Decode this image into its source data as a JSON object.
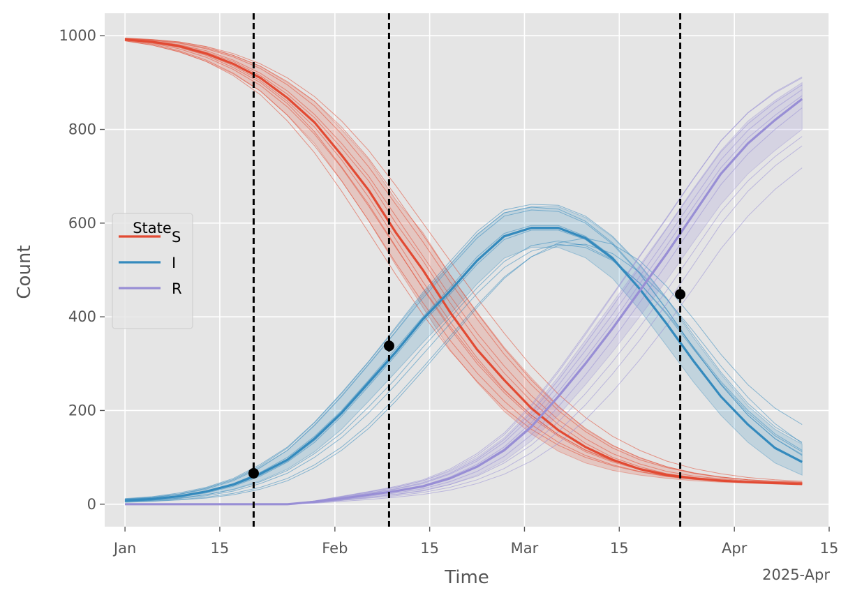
{
  "chart_data": {
    "type": "line",
    "xlabel": "Time",
    "ylabel": "Count",
    "x_offset_label": "2025-Apr",
    "x_ticks": [
      {
        "date": "2025-01-01",
        "label": "Jan"
      },
      {
        "date": "2025-01-15",
        "label": "15"
      },
      {
        "date": "2025-02-01",
        "label": "Feb"
      },
      {
        "date": "2025-02-15",
        "label": "15"
      },
      {
        "date": "2025-03-01",
        "label": "Mar"
      },
      {
        "date": "2025-03-15",
        "label": "15"
      },
      {
        "date": "2025-04-01",
        "label": "Apr"
      },
      {
        "date": "2025-04-15",
        "label": "15"
      }
    ],
    "y_ticks": [
      0,
      200,
      400,
      600,
      800,
      1000
    ],
    "xlim": [
      "2024-12-29",
      "2025-04-15"
    ],
    "ylim": [
      -48,
      1048
    ],
    "grid": true,
    "legend": {
      "title": "State",
      "placement": "center-left"
    },
    "x": [
      "2025-01-01",
      "2025-01-05",
      "2025-01-09",
      "2025-01-13",
      "2025-01-17",
      "2025-01-21",
      "2025-01-25",
      "2025-01-29",
      "2025-02-02",
      "2025-02-06",
      "2025-02-10",
      "2025-02-14",
      "2025-02-18",
      "2025-02-22",
      "2025-02-26",
      "2025-03-02",
      "2025-03-06",
      "2025-03-10",
      "2025-03-14",
      "2025-03-18",
      "2025-03-22",
      "2025-03-26",
      "2025-03-30",
      "2025-04-03",
      "2025-04-07",
      "2025-04-11"
    ],
    "series": [
      {
        "name": "S",
        "color": "#E24A33",
        "mean": [
          992,
          987,
          978,
          962,
          940,
          910,
          867,
          815,
          745,
          670,
          580,
          500,
          410,
          330,
          265,
          205,
          158,
          122,
          95,
          75,
          62,
          55,
          50,
          47,
          45,
          43
        ],
        "lower": [
          989,
          980,
          965,
          945,
          918,
          882,
          830,
          770,
          690,
          605,
          510,
          420,
          330,
          260,
          198,
          150,
          113,
          88,
          72,
          62,
          55,
          50,
          47,
          45,
          43,
          42
        ],
        "upper": [
          995,
          992,
          987,
          977,
          958,
          935,
          900,
          860,
          800,
          735,
          650,
          580,
          490,
          410,
          335,
          270,
          210,
          160,
          125,
          100,
          80,
          66,
          57,
          52,
          49,
          47
        ],
        "runs": [
          [
            993,
            988,
            980,
            965,
            945,
            915,
            875,
            825,
            760,
            690,
            600,
            520,
            430,
            350,
            280,
            220,
            170,
            130,
            100,
            80,
            65,
            57,
            52,
            48,
            46,
            44
          ],
          [
            991,
            985,
            975,
            958,
            932,
            900,
            855,
            795,
            720,
            640,
            550,
            460,
            375,
            300,
            238,
            185,
            145,
            112,
            90,
            74,
            62,
            55,
            50,
            47,
            45,
            44
          ],
          [
            994,
            990,
            984,
            972,
            955,
            930,
            895,
            850,
            790,
            720,
            640,
            560,
            475,
            395,
            320,
            255,
            200,
            155,
            120,
            95,
            78,
            66,
            58,
            52,
            49,
            47
          ],
          [
            990,
            982,
            968,
            948,
            920,
            882,
            830,
            765,
            690,
            605,
            515,
            430,
            350,
            280,
            220,
            170,
            132,
            104,
            84,
            70,
            60,
            54,
            50,
            47,
            45,
            43
          ],
          [
            993,
            989,
            981,
            968,
            948,
            920,
            882,
            832,
            770,
            700,
            615,
            530,
            445,
            365,
            295,
            232,
            180,
            140,
            108,
            86,
            70,
            60,
            54,
            50,
            47,
            45
          ],
          [
            992,
            986,
            976,
            960,
            936,
            904,
            860,
            805,
            735,
            655,
            565,
            475,
            390,
            312,
            245,
            190,
            148,
            115,
            92,
            76,
            64,
            56,
            51,
            48,
            46,
            44
          ],
          [
            995,
            992,
            987,
            977,
            962,
            940,
            910,
            870,
            818,
            755,
            680,
            600,
            520,
            440,
            365,
            295,
            235,
            185,
            145,
            115,
            92,
            76,
            65,
            57,
            52,
            49
          ],
          [
            989,
            980,
            966,
            945,
            915,
            874,
            818,
            750,
            668,
            580,
            490,
            405,
            328,
            262,
            205,
            160,
            126,
            100,
            82,
            69,
            59,
            53,
            49,
            46,
            44,
            43
          ],
          [
            994,
            991,
            985,
            974,
            958,
            935,
            902,
            860,
            805,
            738,
            658,
            575,
            490,
            408,
            332,
            265,
            208,
            162,
            126,
            99,
            80,
            67,
            58,
            52,
            48,
            46
          ],
          [
            991,
            984,
            972,
            954,
            928,
            894,
            848,
            790,
            718,
            636,
            548,
            462,
            380,
            306,
            243,
            190,
            148,
            116,
            93,
            77,
            65,
            57,
            52,
            48,
            46,
            44
          ]
        ]
      },
      {
        "name": "I",
        "color": "#348ABD",
        "mean": [
          8,
          11,
          17,
          27,
          42,
          65,
          95,
          140,
          195,
          260,
          325,
          395,
          455,
          520,
          572,
          590,
          590,
          568,
          525,
          460,
          385,
          305,
          230,
          170,
          120,
          90
        ],
        "lower": [
          5,
          8,
          13,
          20,
          32,
          50,
          75,
          112,
          160,
          220,
          282,
          345,
          405,
          470,
          525,
          548,
          548,
          526,
          482,
          415,
          338,
          260,
          190,
          132,
          88,
          62
        ],
        "upper": [
          11,
          14,
          21,
          34,
          52,
          80,
          115,
          170,
          232,
          300,
          370,
          445,
          510,
          575,
          622,
          635,
          635,
          612,
          570,
          510,
          438,
          355,
          278,
          210,
          160,
          128
        ],
        "runs": [
          [
            9,
            12,
            18,
            28,
            44,
            68,
            100,
            145,
            200,
            265,
            332,
            400,
            462,
            528,
            578,
            595,
            595,
            572,
            528,
            462,
            385,
            305,
            230,
            168,
            120,
            92
          ],
          [
            7,
            10,
            15,
            24,
            38,
            60,
            90,
            132,
            188,
            252,
            318,
            388,
            448,
            512,
            565,
            585,
            585,
            565,
            522,
            458,
            382,
            302,
            228,
            168,
            120,
            90
          ],
          [
            12,
            16,
            24,
            36,
            55,
            85,
            122,
            175,
            238,
            305,
            378,
            452,
            518,
            582,
            628,
            640,
            638,
            615,
            572,
            512,
            440,
            360,
            282,
            215,
            165,
            132
          ],
          [
            6,
            8,
            12,
            18,
            28,
            44,
            66,
            100,
            142,
            195,
            255,
            320,
            385,
            450,
            505,
            540,
            555,
            548,
            520,
            472,
            408,
            335,
            262,
            200,
            150,
            115
          ],
          [
            8,
            11,
            16,
            26,
            40,
            62,
            92,
            136,
            192,
            256,
            322,
            392,
            452,
            518,
            570,
            588,
            588,
            566,
            524,
            460,
            384,
            304,
            230,
            170,
            122,
            92
          ],
          [
            5,
            7,
            10,
            15,
            23,
            36,
            55,
            84,
            122,
            170,
            228,
            292,
            358,
            425,
            485,
            528,
            552,
            555,
            535,
            495,
            438,
            368,
            295,
            228,
            172,
            130
          ],
          [
            10,
            14,
            21,
            32,
            50,
            78,
            115,
            168,
            230,
            298,
            368,
            440,
            505,
            568,
            615,
            628,
            625,
            600,
            555,
            492,
            415,
            332,
            255,
            190,
            140,
            106
          ],
          [
            6,
            9,
            13,
            20,
            31,
            48,
            72,
            108,
            152,
            208,
            268,
            335,
            398,
            462,
            518,
            552,
            562,
            552,
            522,
            472,
            405,
            330,
            258,
            195,
            146,
            112
          ],
          [
            4,
            6,
            9,
            13,
            20,
            32,
            50,
            78,
            115,
            162,
            220,
            285,
            352,
            420,
            482,
            528,
            558,
            568,
            555,
            520,
            465,
            395,
            320,
            255,
            205,
            170
          ],
          [
            11,
            15,
            22,
            34,
            53,
            82,
            120,
            174,
            236,
            304,
            375,
            448,
            512,
            576,
            622,
            634,
            630,
            604,
            558,
            494,
            416,
            333,
            256,
            190,
            140,
            104
          ]
        ]
      },
      {
        "name": "R",
        "color": "#988ED5",
        "mean": [
          0,
          0,
          0,
          0,
          0,
          0,
          0,
          5,
          12,
          20,
          28,
          38,
          55,
          80,
          115,
          165,
          230,
          300,
          375,
          455,
          535,
          620,
          705,
          770,
          820,
          865
        ],
        "lower": [
          0,
          0,
          0,
          0,
          0,
          0,
          0,
          3,
          8,
          14,
          20,
          28,
          42,
          62,
          92,
          135,
          190,
          255,
          325,
          400,
          478,
          560,
          640,
          705,
          755,
          800
        ],
        "upper": [
          0,
          0,
          0,
          0,
          0,
          0,
          0,
          7,
          16,
          26,
          36,
          50,
          70,
          100,
          142,
          200,
          272,
          350,
          430,
          510,
          590,
          675,
          755,
          818,
          862,
          900
        ],
        "runs": [
          [
            0,
            0,
            0,
            0,
            0,
            0,
            0,
            5,
            12,
            20,
            28,
            38,
            56,
            82,
            118,
            168,
            232,
            302,
            378,
            458,
            538,
            622,
            706,
            772,
            822,
            866
          ],
          [
            0,
            0,
            0,
            0,
            0,
            0,
            0,
            4,
            10,
            17,
            24,
            33,
            48,
            70,
            102,
            148,
            208,
            276,
            350,
            430,
            512,
            598,
            682,
            748,
            800,
            846
          ],
          [
            0,
            0,
            0,
            0,
            0,
            0,
            0,
            7,
            16,
            26,
            36,
            50,
            72,
            104,
            148,
            208,
            282,
            362,
            445,
            528,
            610,
            695,
            775,
            835,
            878,
            910
          ],
          [
            0,
            0,
            0,
            0,
            0,
            0,
            0,
            3,
            8,
            13,
            18,
            25,
            36,
            52,
            76,
            110,
            155,
            212,
            278,
            350,
            428,
            512,
            598,
            668,
            722,
            765
          ],
          [
            0,
            0,
            0,
            0,
            0,
            0,
            0,
            5,
            13,
            21,
            29,
            40,
            58,
            85,
            122,
            174,
            240,
            312,
            388,
            470,
            552,
            636,
            718,
            782,
            830,
            872
          ],
          [
            0,
            0,
            0,
            0,
            0,
            0,
            0,
            4,
            9,
            15,
            21,
            29,
            42,
            60,
            88,
            126,
            176,
            236,
            304,
            378,
            456,
            540,
            624,
            690,
            742,
            785
          ],
          [
            0,
            0,
            0,
            0,
            0,
            0,
            0,
            6,
            15,
            24,
            33,
            46,
            66,
            96,
            138,
            195,
            265,
            342,
            422,
            505,
            588,
            672,
            752,
            812,
            858,
            895
          ],
          [
            0,
            0,
            0,
            0,
            0,
            0,
            0,
            6,
            14,
            23,
            32,
            44,
            64,
            92,
            132,
            186,
            254,
            328,
            405,
            486,
            568,
            652,
            735,
            798,
            845,
            885
          ],
          [
            0,
            0,
            0,
            0,
            0,
            0,
            0,
            2,
            6,
            10,
            15,
            21,
            30,
            44,
            64,
            92,
            130,
            180,
            240,
            308,
            382,
            462,
            545,
            615,
            672,
            718
          ],
          [
            0,
            0,
            0,
            0,
            0,
            0,
            0,
            7,
            17,
            27,
            38,
            52,
            75,
            108,
            152,
            212,
            286,
            366,
            448,
            530,
            612,
            696,
            776,
            836,
            880,
            912
          ]
        ]
      }
    ],
    "vlines": [
      "2025-01-20",
      "2025-02-09",
      "2025-03-24"
    ],
    "markers": [
      {
        "date": "2025-01-20",
        "value": 66
      },
      {
        "date": "2025-02-09",
        "value": 338
      },
      {
        "date": "2025-03-24",
        "value": 448
      }
    ]
  }
}
